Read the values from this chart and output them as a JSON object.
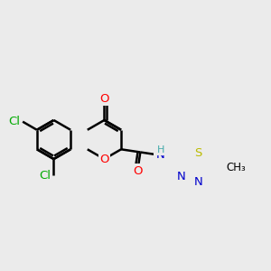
{
  "bg_color": "#ebebeb",
  "bond_color": "#000000",
  "bond_width": 1.8,
  "atom_colors": {
    "O": "#ff0000",
    "N": "#0000cc",
    "S": "#bbbb00",
    "Cl": "#00aa00",
    "C": "#000000",
    "H": "#44aaaa"
  },
  "font_size": 9.5,
  "fig_size": [
    3.0,
    3.0
  ],
  "dpi": 100
}
